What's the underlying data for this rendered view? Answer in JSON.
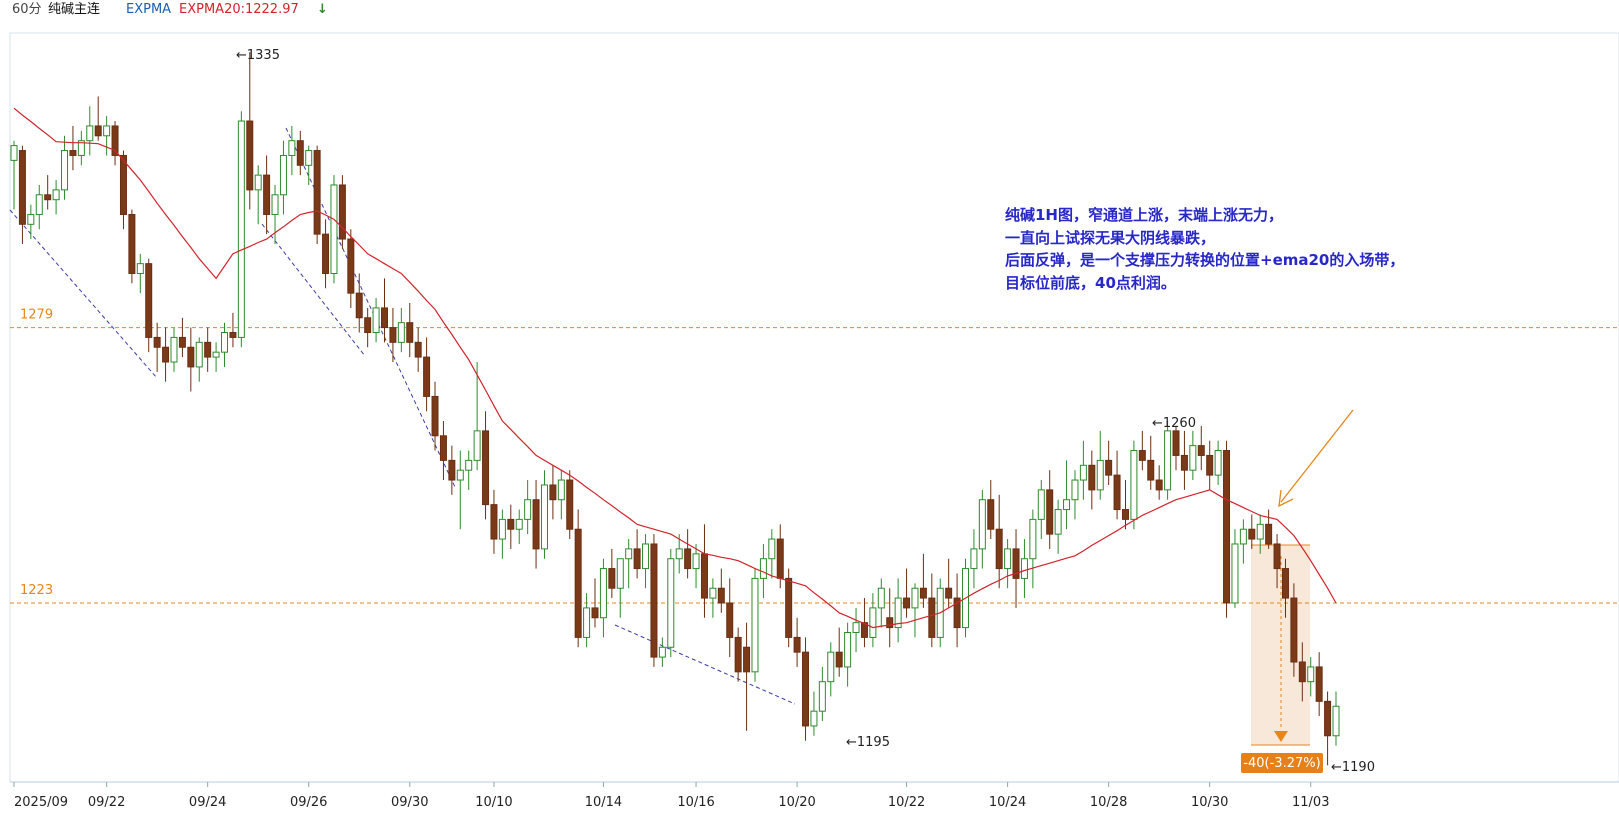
{
  "header": {
    "period": "60分",
    "symbol": "纯碱主连",
    "indicator": "EXPMA",
    "indicator_value": "EXPMA20:1222.97",
    "arrow": "↓"
  },
  "chart_data": {
    "type": "candlestick",
    "categories": [
      "2025/09",
      null,
      null,
      null,
      null,
      null,
      null,
      null,
      null,
      null,
      null,
      "09/22",
      null,
      null,
      null,
      null,
      null,
      null,
      null,
      null,
      null,
      null,
      null,
      "09/24",
      null,
      null,
      null,
      null,
      null,
      null,
      null,
      null,
      null,
      null,
      null,
      "09/26",
      null,
      null,
      null,
      null,
      null,
      null,
      null,
      null,
      null,
      null,
      null,
      "09/30",
      null,
      null,
      null,
      null,
      null,
      null,
      null,
      null,
      null,
      "10/10",
      null,
      null,
      null,
      null,
      null,
      null,
      null,
      null,
      null,
      null,
      null,
      null,
      "10/14",
      null,
      null,
      null,
      null,
      null,
      null,
      null,
      null,
      null,
      null,
      "10/16",
      null,
      null,
      null,
      null,
      null,
      null,
      null,
      null,
      null,
      null,
      null,
      "10/20",
      null,
      null,
      null,
      null,
      null,
      null,
      null,
      null,
      null,
      null,
      null,
      null,
      "10/22",
      null,
      null,
      null,
      null,
      null,
      null,
      null,
      null,
      null,
      null,
      null,
      "10/24",
      null,
      null,
      null,
      null,
      null,
      null,
      null,
      null,
      null,
      null,
      null,
      "10/28",
      null,
      null,
      null,
      null,
      null,
      null,
      null,
      null,
      null,
      null,
      null,
      "10/30",
      null,
      null,
      null,
      null,
      null,
      null,
      null,
      null,
      null,
      null,
      null,
      "11/03",
      null,
      null,
      null
    ],
    "open": [
      1313,
      1315,
      1300,
      1302,
      1306,
      1305,
      1307,
      1315,
      1314,
      1317,
      1320,
      1318,
      1320,
      1314,
      1302,
      1290,
      1292,
      1277,
      1275,
      1272,
      1277,
      1275,
      1271,
      1276,
      1273,
      1274,
      1278,
      1277,
      1321,
      1307,
      1310,
      1302,
      1306,
      1314,
      1317,
      1312,
      1315,
      1298,
      1290,
      1308,
      1297,
      1286,
      1281,
      1278,
      1283,
      1279,
      1276,
      1280,
      1276,
      1273,
      1265,
      1257,
      1252,
      1248,
      1250,
      1252,
      1258,
      1243,
      1236,
      1240,
      1238,
      1240,
      1244,
      1234,
      1247,
      1244,
      1248,
      1238,
      1216,
      1222,
      1220,
      1230,
      1226,
      1232,
      1234,
      1230,
      1235,
      1212,
      1214,
      1232,
      1234,
      1230,
      1233,
      1224,
      1226,
      1223,
      1216,
      1214,
      1209,
      1228,
      1232,
      1236,
      1228,
      1216,
      1213,
      1198,
      1201,
      1207,
      1213,
      1210,
      1217,
      1219,
      1216,
      1222,
      1220,
      1218,
      1224,
      1222,
      1226,
      1224,
      1216,
      1226,
      1224,
      1218,
      1230,
      1234,
      1244,
      1238,
      1230,
      1234,
      1228,
      1232,
      1240,
      1246,
      1237,
      1242,
      1244,
      1248,
      1251,
      1246,
      1252,
      1249,
      1242,
      1240,
      1254,
      1252,
      1248,
      1246,
      1258,
      1253,
      1250,
      1255,
      1253,
      1249,
      1254,
      1223,
      1235,
      1238,
      1236,
      1239,
      1235,
      1230,
      1224,
      1211,
      1207,
      1210,
      1203,
      1196
    ],
    "high": [
      1317,
      1316,
      1304,
      1308,
      1310,
      1309,
      1318,
      1320,
      1319,
      1324,
      1326,
      1322,
      1321,
      1315,
      1303,
      1294,
      1293,
      1280,
      1279,
      1279,
      1281,
      1279,
      1277,
      1279,
      1276,
      1280,
      1282,
      1323,
      1335,
      1312,
      1314,
      1308,
      1317,
      1320,
      1319,
      1316,
      1316,
      1301,
      1310,
      1310,
      1299,
      1290,
      1283,
      1285,
      1289,
      1283,
      1283,
      1284,
      1279,
      1277,
      1268,
      1260,
      1255,
      1254,
      1254,
      1272,
      1262,
      1246,
      1242,
      1243,
      1242,
      1248,
      1248,
      1250,
      1251,
      1250,
      1250,
      1242,
      1225,
      1228,
      1232,
      1234,
      1232,
      1236,
      1238,
      1237,
      1237,
      1216,
      1234,
      1237,
      1238,
      1235,
      1239,
      1228,
      1230,
      1228,
      1218,
      1219,
      1230,
      1235,
      1238,
      1239,
      1230,
      1220,
      1216,
      1205,
      1210,
      1215,
      1218,
      1219,
      1222,
      1224,
      1225,
      1228,
      1226,
      1228,
      1230,
      1227,
      1233,
      1229,
      1228,
      1232,
      1229,
      1232,
      1238,
      1246,
      1248,
      1245,
      1236,
      1238,
      1236,
      1242,
      1248,
      1250,
      1244,
      1252,
      1250,
      1256,
      1254,
      1258,
      1256,
      1254,
      1248,
      1256,
      1258,
      1257,
      1251,
      1260,
      1259,
      1258,
      1258,
      1259,
      1256,
      1256,
      1256,
      1238,
      1240,
      1241,
      1241,
      1242,
      1237,
      1232,
      1227,
      1215,
      1212,
      1213,
      1205,
      1205
    ],
    "low": [
      1303,
      1296,
      1297,
      1299,
      1303,
      1302,
      1305,
      1311,
      1312,
      1314,
      1317,
      1314,
      1312,
      1299,
      1288,
      1286,
      1274,
      1270,
      1268,
      1270,
      1273,
      1266,
      1268,
      1270,
      1270,
      1271,
      1275,
      1275,
      1303,
      1300,
      1298,
      1296,
      1302,
      1310,
      1310,
      1308,
      1296,
      1287,
      1288,
      1295,
      1283,
      1278,
      1275,
      1276,
      1276,
      1272,
      1274,
      1273,
      1270,
      1262,
      1254,
      1248,
      1245,
      1238,
      1246,
      1250,
      1240,
      1233,
      1232,
      1234,
      1235,
      1237,
      1230,
      1232,
      1240,
      1240,
      1236,
      1214,
      1214,
      1218,
      1216,
      1224,
      1220,
      1226,
      1228,
      1226,
      1210,
      1210,
      1212,
      1229,
      1228,
      1226,
      1220,
      1220,
      1221,
      1212,
      1207,
      1197,
      1207,
      1224,
      1228,
      1226,
      1214,
      1210,
      1195,
      1196,
      1199,
      1204,
      1208,
      1206,
      1213,
      1214,
      1214,
      1218,
      1214,
      1215,
      1220,
      1216,
      1222,
      1214,
      1214,
      1222,
      1214,
      1216,
      1226,
      1230,
      1236,
      1226,
      1226,
      1222,
      1224,
      1226,
      1236,
      1234,
      1233,
      1238,
      1240,
      1244,
      1242,
      1244,
      1247,
      1240,
      1238,
      1238,
      1250,
      1246,
      1244,
      1244,
      1250,
      1246,
      1248,
      1250,
      1246,
      1247,
      1220,
      1222,
      1231,
      1234,
      1233,
      1234,
      1226,
      1220,
      1208,
      1203,
      1204,
      1200,
      1190,
      1194
    ],
    "close": [
      1316,
      1300,
      1302,
      1306,
      1305,
      1307,
      1315,
      1314,
      1317,
      1320,
      1318,
      1320,
      1314,
      1302,
      1290,
      1292,
      1277,
      1275,
      1272,
      1277,
      1275,
      1271,
      1276,
      1273,
      1274,
      1278,
      1277,
      1321,
      1307,
      1310,
      1302,
      1306,
      1314,
      1317,
      1312,
      1315,
      1298,
      1290,
      1308,
      1297,
      1286,
      1281,
      1278,
      1283,
      1279,
      1276,
      1280,
      1276,
      1273,
      1265,
      1257,
      1252,
      1248,
      1250,
      1252,
      1258,
      1243,
      1236,
      1240,
      1238,
      1240,
      1244,
      1234,
      1247,
      1244,
      1248,
      1238,
      1216,
      1222,
      1220,
      1230,
      1226,
      1232,
      1234,
      1230,
      1235,
      1212,
      1214,
      1232,
      1234,
      1230,
      1233,
      1224,
      1226,
      1223,
      1216,
      1209,
      1209,
      1228,
      1232,
      1236,
      1228,
      1216,
      1213,
      1198,
      1201,
      1207,
      1213,
      1210,
      1217,
      1219,
      1216,
      1222,
      1226,
      1218,
      1224,
      1222,
      1226,
      1224,
      1216,
      1226,
      1224,
      1218,
      1230,
      1234,
      1244,
      1238,
      1230,
      1234,
      1228,
      1232,
      1240,
      1246,
      1237,
      1242,
      1244,
      1248,
      1251,
      1246,
      1252,
      1249,
      1242,
      1240,
      1254,
      1252,
      1248,
      1246,
      1258,
      1253,
      1250,
      1255,
      1253,
      1249,
      1254,
      1223,
      1235,
      1238,
      1236,
      1239,
      1235,
      1230,
      1224,
      1211,
      1207,
      1210,
      1203,
      1196,
      1202
    ],
    "up_color": "#2e8b2e",
    "down_color": "#6b2e12",
    "down_fill": "#7a3a1a",
    "ema": {
      "color": "#d0242c",
      "values": [
        1323.6,
        1322.2,
        1320.9,
        1319.5,
        1318.2,
        1316.8,
        1316.7,
        1316.6,
        1316.6,
        1316.5,
        1316.4,
        1315.7,
        1315,
        1313,
        1311,
        1309,
        1306.7,
        1304.3,
        1302,
        1299.8,
        1297.5,
        1295.3,
        1293,
        1291,
        1289,
        1291.5,
        1294,
        1294.8,
        1295.5,
        1296.3,
        1297,
        1298.3,
        1299.5,
        1300.8,
        1302,
        1302.4,
        1302.7,
        1301.9,
        1301,
        1299.3,
        1297.5,
        1295.8,
        1294,
        1293,
        1292,
        1291,
        1290,
        1288.2,
        1286.4,
        1284.5,
        1282.7,
        1280.1,
        1277.6,
        1275,
        1272.5,
        1269.4,
        1266.3,
        1263.1,
        1260,
        1258.3,
        1256.5,
        1254.8,
        1253,
        1252,
        1251,
        1250,
        1249,
        1247.8,
        1246.5,
        1245.3,
        1244,
        1242.8,
        1241.5,
        1240.3,
        1239,
        1238.5,
        1238,
        1237.5,
        1237,
        1236,
        1235,
        1234,
        1233,
        1232.7,
        1232.3,
        1232,
        1231.6,
        1230.8,
        1230,
        1229.3,
        1228.5,
        1228,
        1227.5,
        1227,
        1226.5,
        1225.1,
        1223.8,
        1222.4,
        1221,
        1220.3,
        1219.5,
        1218.8,
        1218,
        1218.3,
        1218.5,
        1218.8,
        1219,
        1219.5,
        1220,
        1220.5,
        1221,
        1222,
        1223,
        1224,
        1225,
        1225.9,
        1226.8,
        1227.6,
        1228.5,
        1229,
        1229.6,
        1230.1,
        1230.6,
        1231.1,
        1231.6,
        1232.1,
        1232.6,
        1233.6,
        1234.7,
        1235.7,
        1236.7,
        1237.7,
        1238.8,
        1239.8,
        1240.8,
        1241.6,
        1242.4,
        1243.2,
        1244,
        1244.5,
        1245,
        1245.5,
        1246,
        1245,
        1244,
        1243.2,
        1242.4,
        1241.6,
        1240.8,
        1240.4,
        1240,
        1238.4,
        1236.7,
        1234.2,
        1231.6,
        1228.8,
        1226,
        1223
      ]
    },
    "ylim": [
      1186.6,
      1338.9
    ],
    "levels": [
      1279,
      1223
    ],
    "level_color": "#e8861a",
    "annotations": [
      "←1335",
      "←1260",
      "←1195",
      "←1190"
    ],
    "note": [
      "纯碱1H图，窄通道上涨，末端上涨无力，",
      "一直向上试探无果大阴线暴跌，",
      "后面反弹，是一个支撑压力转换的位置+ema20的入场带，",
      "目标位前底，40点利润。"
    ],
    "target_label": "-40(-3.27%)"
  }
}
